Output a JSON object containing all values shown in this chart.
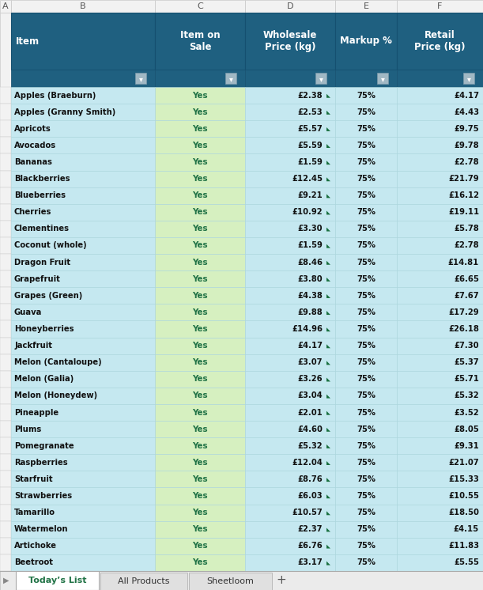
{
  "headers": [
    "Item",
    "Item on\nSale",
    "Wholesale\nPrice (kg)",
    "Markup %",
    "Retail\nPrice (kg)"
  ],
  "rows": [
    [
      "Apples (Braeburn)",
      "Yes",
      "£2.38",
      "75%",
      "£4.17"
    ],
    [
      "Apples (Granny Smith)",
      "Yes",
      "£2.53",
      "75%",
      "£4.43"
    ],
    [
      "Apricots",
      "Yes",
      "£5.57",
      "75%",
      "£9.75"
    ],
    [
      "Avocados",
      "Yes",
      "£5.59",
      "75%",
      "£9.78"
    ],
    [
      "Bananas",
      "Yes",
      "£1.59",
      "75%",
      "£2.78"
    ],
    [
      "Blackberries",
      "Yes",
      "£12.45",
      "75%",
      "£21.79"
    ],
    [
      "Blueberries",
      "Yes",
      "£9.21",
      "75%",
      "£16.12"
    ],
    [
      "Cherries",
      "Yes",
      "£10.92",
      "75%",
      "£19.11"
    ],
    [
      "Clementines",
      "Yes",
      "£3.30",
      "75%",
      "£5.78"
    ],
    [
      "Coconut (whole)",
      "Yes",
      "£1.59",
      "75%",
      "£2.78"
    ],
    [
      "Dragon Fruit",
      "Yes",
      "£8.46",
      "75%",
      "£14.81"
    ],
    [
      "Grapefruit",
      "Yes",
      "£3.80",
      "75%",
      "£6.65"
    ],
    [
      "Grapes (Green)",
      "Yes",
      "£4.38",
      "75%",
      "£7.67"
    ],
    [
      "Guava",
      "Yes",
      "£9.88",
      "75%",
      "£17.29"
    ],
    [
      "Honeyberries",
      "Yes",
      "£14.96",
      "75%",
      "£26.18"
    ],
    [
      "Jackfruit",
      "Yes",
      "£4.17",
      "75%",
      "£7.30"
    ],
    [
      "Melon (Cantaloupe)",
      "Yes",
      "£3.07",
      "75%",
      "£5.37"
    ],
    [
      "Melon (Galia)",
      "Yes",
      "£3.26",
      "75%",
      "£5.71"
    ],
    [
      "Melon (Honeydew)",
      "Yes",
      "£3.04",
      "75%",
      "£5.32"
    ],
    [
      "Pineapple",
      "Yes",
      "£2.01",
      "75%",
      "£3.52"
    ],
    [
      "Plums",
      "Yes",
      "£4.60",
      "75%",
      "£8.05"
    ],
    [
      "Pomegranate",
      "Yes",
      "£5.32",
      "75%",
      "£9.31"
    ],
    [
      "Raspberries",
      "Yes",
      "£12.04",
      "75%",
      "£21.07"
    ],
    [
      "Starfruit",
      "Yes",
      "£8.76",
      "75%",
      "£15.33"
    ],
    [
      "Strawberries",
      "Yes",
      "£6.03",
      "75%",
      "£10.55"
    ],
    [
      "Tamarillo",
      "Yes",
      "£10.57",
      "75%",
      "£18.50"
    ],
    [
      "Watermelon",
      "Yes",
      "£2.37",
      "75%",
      "£4.15"
    ],
    [
      "Artichoke",
      "Yes",
      "£6.76",
      "75%",
      "£11.83"
    ],
    [
      "Beetroot",
      "Yes",
      "£3.17",
      "75%",
      "£5.55"
    ]
  ],
  "col_letters": [
    "A",
    "B",
    "C",
    "D",
    "E",
    "F"
  ],
  "header_bg": "#1F6080",
  "row_bg": "#C5E8F0",
  "yes_bg": "#D6F0C0",
  "yes_text": "#217346",
  "tab_active_text": "#217346",
  "tab_names": [
    "Today’s List",
    "All Products",
    "Sheetloom"
  ],
  "excel_header_bg": "#F2F2F2",
  "excel_border": "#C8C8C8",
  "cell_border": "#A8D4DC",
  "dark_header_border": "#155070",
  "triangle_color": "#1A7040"
}
